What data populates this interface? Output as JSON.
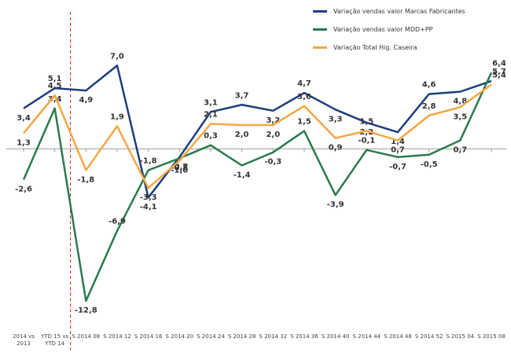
{
  "chart_data": {
    "type": "line",
    "categories": [
      "2014 vs 2013",
      "YTD 15 vs YTD 14",
      "S 2014 08",
      "S 2014 12",
      "S 2014 16",
      "S 2014 20",
      "S 2014 24",
      "S 2014 28",
      "S 2014 32",
      "S 2014 36",
      "S 2014 40",
      "S 2014 44",
      "S 2014 48",
      "S 2014 52",
      "S 2015 04",
      "S 2015 08"
    ],
    "series": [
      {
        "name": "Variação vendas valor Marcas Fabricantes",
        "color": "#1c3f7c",
        "values": [
          3.4,
          5.1,
          4.9,
          7.0,
          -4.1,
          -0.7,
          3.1,
          3.7,
          3.2,
          4.7,
          3.3,
          2.2,
          1.4,
          4.6,
          4.8,
          5.7
        ],
        "value_labels": [
          "3,4",
          "5,1",
          "4,9",
          "7,0",
          "-4,1",
          "-0,7",
          "3,1",
          "3,7",
          "3,2",
          "4,7",
          "3,3",
          "2,2",
          "1,4",
          "4,6",
          "4,8",
          "5,7"
        ]
      },
      {
        "name": "Variação vendas valor MDD+PP",
        "color": "#2b7a4b",
        "values": [
          -2.6,
          3.4,
          -12.8,
          -6.9,
          -1.8,
          -0.8,
          0.3,
          -1.4,
          -0.3,
          1.5,
          -3.9,
          -0.1,
          -0.7,
          -0.5,
          0.7,
          6.4
        ],
        "value_labels": [
          "-2,6",
          "3,4",
          "-12,8",
          "-6,9",
          "-1,8",
          "-0,8",
          "0,3",
          "-1,4",
          "-0,3",
          "1,5",
          "-3,9",
          "-0,1",
          "-0,7",
          "-0,5",
          "0,7",
          "6,4"
        ]
      },
      {
        "name": "Variação Total Hig. Caseira",
        "color": "#f4a743",
        "values": [
          1.3,
          4.5,
          -1.8,
          1.9,
          -3.3,
          -1.0,
          2.1,
          2.0,
          2.0,
          3.6,
          0.9,
          1.5,
          0.7,
          2.8,
          3.5,
          5.4
        ],
        "value_labels": [
          "1,3",
          "4,5",
          "-1,8",
          "1,9",
          "-3,3",
          "-1,0",
          "2,1",
          "2,0",
          "2,0",
          "3,6",
          "0,9",
          "1,5",
          "0,7",
          "2,8",
          "3,5",
          "5,4"
        ]
      }
    ],
    "ylim": [
      -15,
      10
    ]
  }
}
